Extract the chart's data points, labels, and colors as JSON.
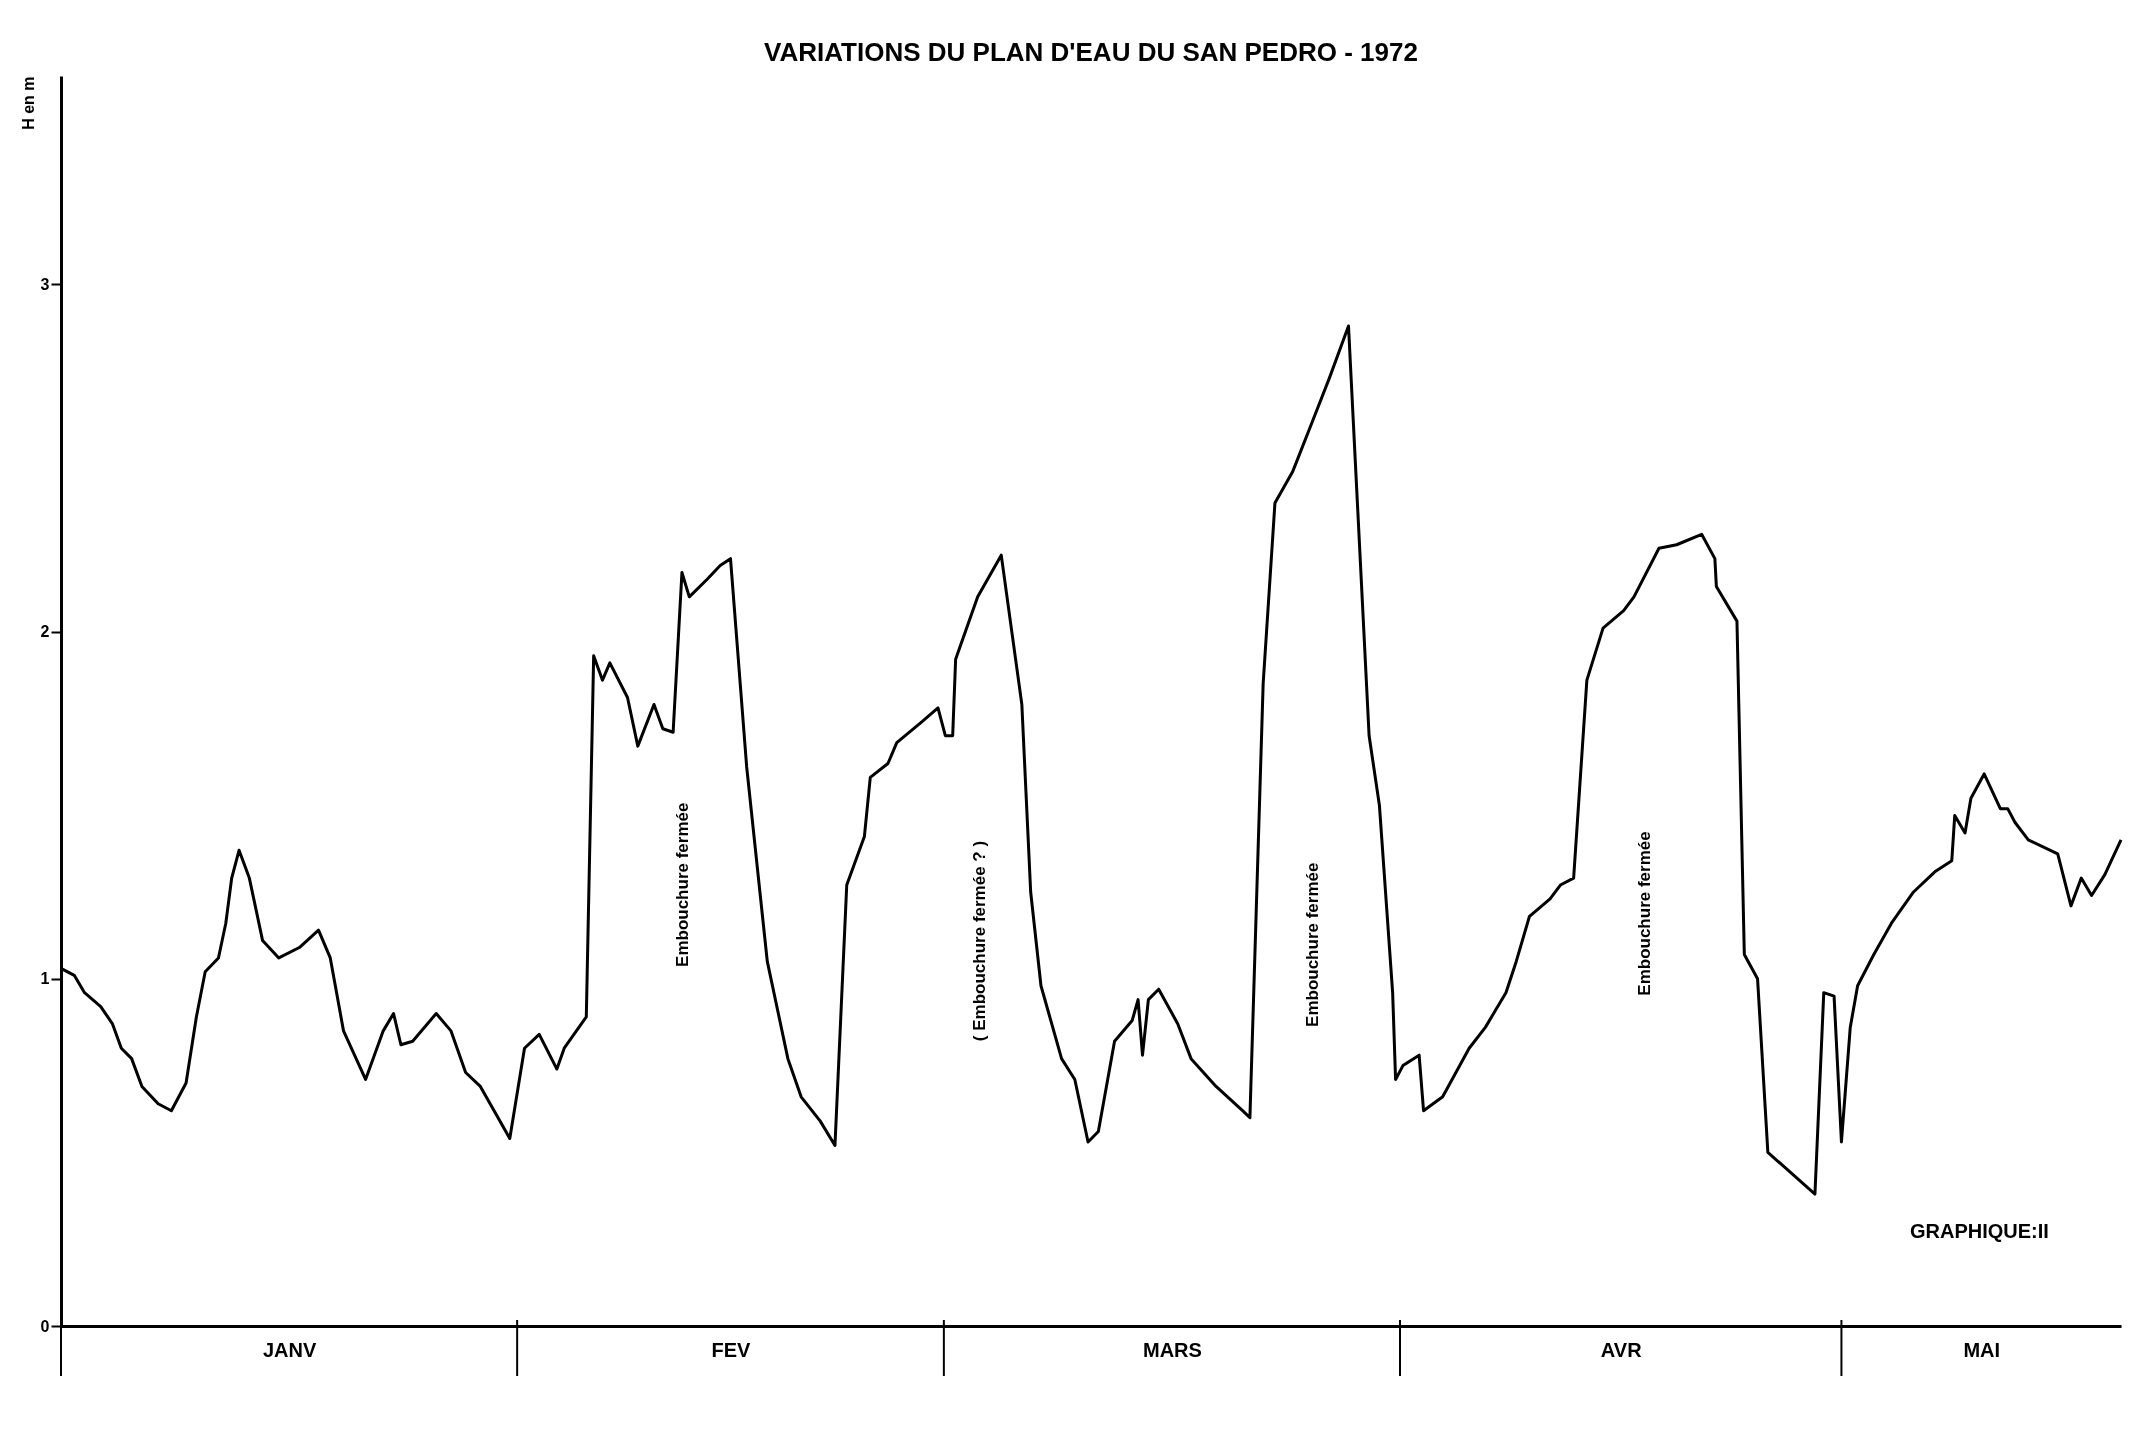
{
  "chart_data": {
    "type": "line",
    "title": "VARIATIONS DU PLAN D'EAU DU SAN PEDRO  -  1972",
    "ylabel": "H en m",
    "x": [
      "1972-01-01T00:00",
      "1972-01-01T21:36",
      "1972-01-02T14:24",
      "1972-01-03T16:48",
      "1972-01-04T12:00",
      "1972-01-05T02:24",
      "1972-01-05T19:12",
      "1972-01-06T12:00",
      "1972-01-07T14:24",
      "1972-01-08T12:00",
      "1972-01-09T12:00",
      "1972-01-10T04:48",
      "1972-01-10T19:12",
      "1972-01-11T16:48",
      "1972-01-12T04:48",
      "1972-01-12T14:24",
      "1972-01-13T02:24",
      "1972-01-13T19:12",
      "1972-01-14T16:48",
      "1972-01-15T19:12",
      "1972-01-17T04:48",
      "1972-01-18T12:00",
      "1972-01-19T07:12",
      "1972-01-20T04:48",
      "1972-01-21T16:48",
      "1972-01-22T21:36",
      "1972-01-23T14:24",
      "1972-01-24T02:24",
      "1972-01-24T21:36",
      "1972-01-26T12:00",
      "1972-01-27T12:00",
      "1972-01-28T12:00",
      "1972-01-29T12:00",
      "1972-01-31T12:00",
      "1972-02-01T12:00",
      "1972-02-02T12:00",
      "1972-02-03T16:48",
      "1972-02-04T04:48",
      "1972-02-05T16:48",
      "1972-02-06T04:48",
      "1972-02-06T19:12",
      "1972-02-07T07:12",
      "1972-02-08T12:00",
      "1972-02-09T04:48",
      "1972-02-10T07:12",
      "1972-02-10T21:36",
      "1972-02-11T14:24",
      "1972-02-12T04:48",
      "1972-02-12T16:48",
      "1972-02-13T21:36",
      "1972-02-14T19:12",
      "1972-02-15T12:00",
      "1972-02-16T14:24",
      "1972-02-18T00:00",
      "1972-02-19T09:36",
      "1972-02-20T07:12",
      "1972-02-21T14:24",
      "1972-02-22T14:24",
      "1972-02-23T09:36",
      "1972-02-24T14:24",
      "1972-02-25T00:00",
      "1972-02-26T04:48",
      "1972-02-26T19:12",
      "1972-02-28T12:00",
      "1972-02-29T14:24",
      "1972-03-01T02:24",
      "1972-03-01T14:24",
      "1972-03-01T19:12",
      "1972-03-03T07:12",
      "1972-03-04T21:36",
      "1972-03-06T07:12",
      "1972-03-06T21:36",
      "1972-03-07T14:24",
      "1972-03-09T00:00",
      "1972-03-09T21:36",
      "1972-03-10T19:12",
      "1972-03-11T12:00",
      "1972-03-12T14:24",
      "1972-03-13T19:12",
      "1972-03-14T04:48",
      "1972-03-14T12:00",
      "1972-03-14T21:36",
      "1972-03-15T14:24",
      "1972-03-16T21:36",
      "1972-03-17T19:12",
      "1972-03-19T12:00",
      "1972-03-21T07:12",
      "1972-03-21T19:12",
      "1972-03-22T16:48",
      "1972-03-23T12:00",
      "1972-03-24T16:48",
      "1972-03-26T00:00",
      "1972-03-27T04:48",
      "1972-03-28T12:00",
      "1972-03-29T21:36",
      "1972-03-30T14:24",
      "1972-03-31T12:00",
      "1972-03-31T16:48",
      "1972-04-01T04:48",
      "1972-04-02T07:12",
      "1972-04-02T14:24",
      "1972-04-03T21:36",
      "1972-04-04T19:12",
      "1972-04-05T16:48",
      "1972-04-06T19:12",
      "1972-04-07T12:00",
      "1972-04-08T04:48",
      "1972-04-08T21:36",
      "1972-04-09T19:12",
      "1972-04-11T04:48",
      "1972-04-11T21:36",
      "1972-04-12T19:12",
      "1972-04-13T16:48",
      "1972-04-14T19:12",
      "1972-04-16T04:48",
      "1972-04-16T21:36",
      "1972-04-18T14:24",
      "1972-04-19T19:12",
      "1972-04-21T12:00",
      "1972-04-22T09:36",
      "1972-04-22T12:00",
      "1972-04-23T21:36",
      "1972-04-24T09:36",
      "1972-04-25T07:12",
      "1972-04-26T00:00",
      "1972-04-29T04:48",
      "1972-04-29T19:12",
      "1972-04-30T12:00",
      "1972-05-01T00:00",
      "1972-05-01T14:24",
      "1972-05-02T02:24",
      "1972-05-03T04:48",
      "1972-05-04T09:36",
      "1972-05-05T21:36",
      "1972-05-07T09:36",
      "1972-05-08T12:00",
      "1972-05-08T16:48",
      "1972-05-09T09:36",
      "1972-05-09T19:12",
      "1972-05-10T16:48",
      "1972-05-11T19:12",
      "1972-05-12T07:12",
      "1972-05-12T19:12",
      "1972-05-13T16:48",
      "1972-05-15T16:48",
      "1972-05-16T14:24",
      "1972-05-17T07:12",
      "1972-05-18T00:00",
      "1972-05-18T21:36",
      "1972-05-20T00:00"
    ],
    "series": [
      {
        "color": "#000000",
        "values": [
          1.03,
          1.01,
          0.96,
          0.92,
          0.87,
          0.8,
          0.77,
          0.69,
          0.64,
          0.62,
          0.7,
          0.89,
          1.02,
          1.06,
          1.16,
          1.29,
          1.37,
          1.29,
          1.11,
          1.06,
          1.09,
          1.14,
          1.06,
          0.85,
          0.71,
          0.85,
          0.9,
          0.81,
          0.82,
          0.9,
          0.85,
          0.73,
          0.69,
          0.54,
          0.8,
          0.84,
          0.74,
          0.8,
          0.89,
          1.93,
          1.86,
          1.91,
          1.81,
          1.67,
          1.79,
          1.72,
          1.71,
          2.17,
          2.1,
          2.15,
          2.19,
          2.21,
          1.61,
          1.05,
          0.77,
          0.66,
          0.59,
          0.52,
          1.27,
          1.41,
          1.58,
          1.62,
          1.68,
          1.74,
          1.78,
          1.7,
          1.7,
          1.92,
          2.1,
          2.22,
          1.79,
          1.25,
          0.98,
          0.77,
          0.71,
          0.53,
          0.56,
          0.82,
          0.88,
          0.94,
          0.78,
          0.94,
          0.97,
          0.87,
          0.77,
          0.69,
          0.62,
          0.6,
          1.85,
          2.37,
          2.46,
          2.6,
          2.73,
          2.88,
          1.7,
          1.5,
          0.96,
          0.71,
          0.75,
          0.78,
          0.62,
          0.66,
          0.73,
          0.8,
          0.86,
          0.91,
          0.96,
          1.05,
          1.18,
          1.23,
          1.27,
          1.29,
          1.86,
          2.01,
          2.06,
          2.1,
          2.24,
          2.25,
          2.28,
          2.21,
          2.13,
          2.03,
          1.07,
          1.0,
          0.5,
          0.38,
          0.96,
          0.95,
          0.53,
          0.86,
          0.98,
          1.07,
          1.16,
          1.25,
          1.31,
          1.34,
          1.47,
          1.42,
          1.52,
          1.59,
          1.49,
          1.49,
          1.45,
          1.4,
          1.36,
          1.21,
          1.29,
          1.24,
          1.3,
          1.4
        ]
      }
    ],
    "xlim": [
      "1972-01-01",
      "1972-05-20"
    ],
    "xticks": [
      {
        "value": "1972-01-16T12:00",
        "label": "JANV"
      },
      {
        "value": "1972-02-15T12:00",
        "label": "FEV"
      },
      {
        "value": "1972-03-16T12:00",
        "label": "MARS"
      },
      {
        "value": "1972-04-16",
        "label": "AVR"
      },
      {
        "value": "1972-05-10T12:00",
        "label": "MAI"
      }
    ],
    "ylim": [
      0,
      3.6
    ],
    "yticks": [
      0,
      1,
      2,
      3
    ],
    "grid": false,
    "marker": "none",
    "line_style": "solid",
    "annotations": [
      "Embouchure fermée",
      "( Embouchure fermée ? )",
      "Embouchure fermée",
      "Embouchure fermée",
      "GRAPHIQUE:II"
    ]
  }
}
